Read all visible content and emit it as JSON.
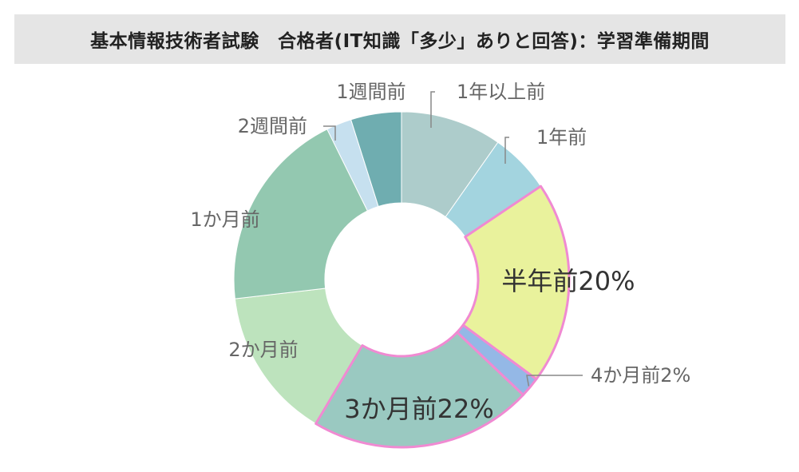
{
  "title": "基本情報技術者試験　合格者(IT知識「多少」ありと回答)：学習準備期間",
  "chart_data": {
    "type": "pie",
    "variant": "donut",
    "start": "top",
    "direction": "clockwise",
    "slices": [
      {
        "label": "1年以上前",
        "value": 10,
        "color": "#adcccb",
        "highlight": false
      },
      {
        "label": "1年前",
        "value": 6,
        "color": "#a3d4df",
        "highlight": false
      },
      {
        "label": "半年前20%",
        "value": 20,
        "color": "#e9f29c",
        "highlight": true
      },
      {
        "label": "4か月前2%",
        "value": 2,
        "color": "#94b8e6",
        "highlight": true
      },
      {
        "label": "3か月前22%",
        "value": 22,
        "color": "#9ac9c1",
        "highlight": true
      },
      {
        "label": "2か月前",
        "value": 15,
        "color": "#bde3bd",
        "highlight": false
      },
      {
        "label": "1か月前",
        "value": 20,
        "color": "#93c8b0",
        "highlight": false
      },
      {
        "label": "2週間前",
        "value": 2.5,
        "color": "#c6e0ef",
        "highlight": false
      },
      {
        "label": "1週間前",
        "value": 5,
        "color": "#6fadb0",
        "highlight": false
      }
    ],
    "highlight_color": "#f08ad2"
  }
}
